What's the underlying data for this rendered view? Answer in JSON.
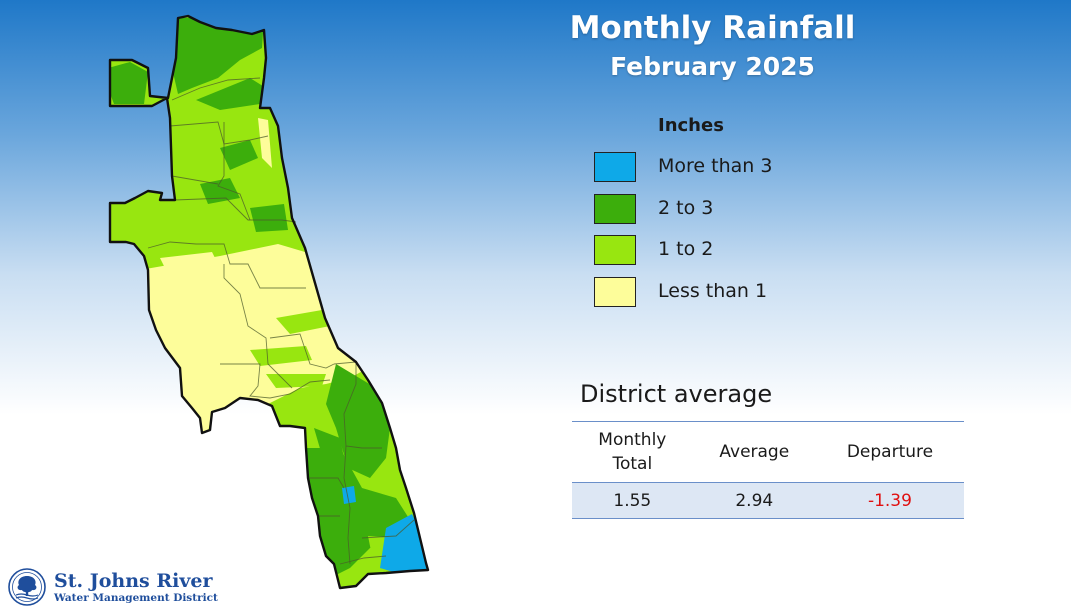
{
  "title": "Monthly Rainfall",
  "subtitle": "February 2025",
  "legend": {
    "heading": "Inches",
    "items": [
      {
        "label": "More than 3",
        "color": "#0ea9e8"
      },
      {
        "label": "2 to 3",
        "color": "#3cae0c"
      },
      {
        "label": "1 to 2",
        "color": "#98e610"
      },
      {
        "label": "Less than 1",
        "color": "#fdfd9a"
      }
    ]
  },
  "district_average": {
    "heading": "District average",
    "columns": {
      "monthly_line1": "Monthly",
      "monthly_line2": "Total",
      "average": "Average",
      "departure": "Departure"
    },
    "values": {
      "monthly_total": "1.55",
      "average": "2.94",
      "departure": "-1.39"
    },
    "departure_color": "#e01010"
  },
  "logo": {
    "name": "St. Johns River",
    "subtitle": "Water Management District",
    "icon": "district-seal-icon",
    "color": "#1f4e9c"
  },
  "map": {
    "icon": "district-rainfall-map",
    "fill_colors": {
      "base": "#98e610",
      "dry": "#fdfd9a",
      "wet": "#3cae0c",
      "very_wet": "#0ea9e8"
    }
  }
}
